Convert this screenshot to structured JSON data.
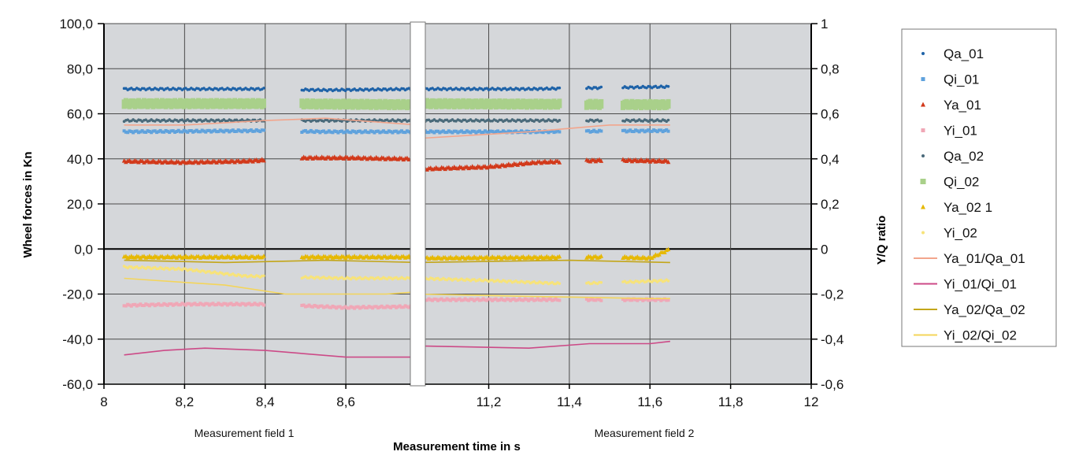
{
  "chart_data": {
    "type": "scatter",
    "xlabel": "Measurement time in s",
    "ylabel": "Wheel forces in Kn",
    "y2label": "Y/Q ratio",
    "ylim": [
      -60,
      100
    ],
    "y2lim": [
      -0.6,
      1
    ],
    "left_ticks": [
      "-60,0",
      "-40,0",
      "-20,0",
      "0,0",
      "20,0",
      "40,0",
      "60,0",
      "80,0",
      "100,0"
    ],
    "right_ticks": [
      "-0,6",
      "-0,4",
      "-0,2",
      "0",
      "0,2",
      "0,4",
      "0,6",
      "0,8",
      "1"
    ],
    "x_ticks": [
      "8",
      "8,2",
      "8,4",
      "8,6",
      "11,2",
      "11,4",
      "11,6",
      "11,8",
      "12"
    ],
    "x_tick_values": [
      8,
      8.2,
      8.4,
      8.6,
      11.2,
      11.4,
      11.6,
      11.8,
      12
    ],
    "axis_break": [
      8.8,
      11.0
    ],
    "field_labels": [
      "Measurement field 1",
      "Measurement field 2"
    ],
    "grid": true,
    "legend_position": "right",
    "gap_segments": [
      [
        8.4,
        8.49
      ],
      [
        11.38,
        11.44
      ],
      [
        11.48,
        11.53
      ]
    ],
    "series": [
      {
        "name": "Qa_01",
        "color": "#1f63a8",
        "marker": "dot",
        "axis": "left",
        "range1": [
          8.05,
          8.78
        ],
        "range2": [
          11.02,
          11.65
        ],
        "points": [
          [
            8.05,
            71
          ],
          [
            8.4,
            71
          ],
          [
            8.55,
            70.5
          ],
          [
            8.78,
            71
          ],
          [
            11.02,
            71
          ],
          [
            11.3,
            71
          ],
          [
            11.65,
            72
          ]
        ]
      },
      {
        "name": "Qi_01",
        "color": "#5fa2dd",
        "marker": "square",
        "axis": "left",
        "range1": [
          8.05,
          8.78
        ],
        "range2": [
          11.02,
          11.65
        ],
        "points": [
          [
            8.05,
            52
          ],
          [
            8.4,
            52.5
          ],
          [
            8.55,
            52
          ],
          [
            8.78,
            52
          ],
          [
            11.02,
            52
          ],
          [
            11.3,
            52
          ],
          [
            11.65,
            52.5
          ]
        ]
      },
      {
        "name": "Ya_01",
        "color": "#d2391a",
        "marker": "triangle",
        "axis": "left",
        "range1": [
          8.05,
          8.78
        ],
        "range2": [
          11.02,
          11.65
        ],
        "points": [
          [
            8.05,
            39
          ],
          [
            8.2,
            38.5
          ],
          [
            8.35,
            39
          ],
          [
            8.5,
            40.5
          ],
          [
            8.6,
            40.5
          ],
          [
            8.78,
            40
          ],
          [
            11.02,
            35.5
          ],
          [
            11.2,
            36.5
          ],
          [
            11.32,
            38.5
          ],
          [
            11.5,
            39.5
          ],
          [
            11.65,
            39
          ]
        ]
      },
      {
        "name": "Yi_01",
        "color": "#f0a7b6",
        "marker": "square",
        "axis": "left",
        "range1": [
          8.05,
          8.78
        ],
        "range2": [
          11.02,
          11.65
        ],
        "points": [
          [
            8.05,
            -25
          ],
          [
            8.2,
            -24.5
          ],
          [
            8.4,
            -24.5
          ],
          [
            8.6,
            -26
          ],
          [
            8.78,
            -25.5
          ],
          [
            11.02,
            -22.5
          ],
          [
            11.3,
            -22.5
          ],
          [
            11.65,
            -22.5
          ]
        ]
      },
      {
        "name": "Qa_02",
        "color": "#4a6a7a",
        "marker": "dot",
        "axis": "left",
        "range1": [
          8.05,
          8.78
        ],
        "range2": [
          11.02,
          11.65
        ],
        "points": [
          [
            8.05,
            57
          ],
          [
            8.4,
            57
          ],
          [
            8.78,
            57
          ],
          [
            11.02,
            57
          ],
          [
            11.65,
            57
          ]
        ]
      },
      {
        "name": "Qi_02",
        "color": "#a9d08a",
        "marker": "square-big",
        "axis": "left",
        "range1": [
          8.05,
          8.78
        ],
        "range2": [
          11.02,
          11.65
        ],
        "points": [
          [
            8.05,
            64.5
          ],
          [
            8.4,
            64.5
          ],
          [
            8.78,
            64
          ],
          [
            11.02,
            64.5
          ],
          [
            11.65,
            64
          ]
        ]
      },
      {
        "name": "Ya_02 1",
        "color": "#e6b800",
        "marker": "triangle",
        "axis": "left",
        "range1": [
          8.05,
          8.78
        ],
        "range2": [
          11.02,
          11.65
        ],
        "points": [
          [
            8.05,
            -3.5
          ],
          [
            8.4,
            -3.5
          ],
          [
            8.78,
            -3.5
          ],
          [
            11.02,
            -4
          ],
          [
            11.5,
            -3.5
          ],
          [
            11.6,
            -4
          ],
          [
            11.65,
            0
          ]
        ]
      },
      {
        "name": "Yi_02",
        "color": "#f7e37a",
        "marker": "dot",
        "axis": "left",
        "range1": [
          8.05,
          8.78
        ],
        "range2": [
          11.02,
          11.65
        ],
        "points": [
          [
            8.05,
            -8
          ],
          [
            8.2,
            -9
          ],
          [
            8.35,
            -12
          ],
          [
            8.6,
            -13
          ],
          [
            8.78,
            -13
          ],
          [
            11.02,
            -13
          ],
          [
            11.2,
            -14
          ],
          [
            11.4,
            -15.5
          ],
          [
            11.65,
            -14
          ]
        ]
      },
      {
        "name": "Ya_01/Qa_01",
        "color": "#f2a58c",
        "marker": "line",
        "axis": "right",
        "range1": [
          8.05,
          8.78
        ],
        "range2": [
          11.02,
          11.65
        ],
        "points": [
          [
            8.05,
            0.55
          ],
          [
            8.2,
            0.55
          ],
          [
            8.4,
            0.57
          ],
          [
            8.55,
            0.58
          ],
          [
            8.78,
            0.55
          ],
          [
            11.02,
            0.49
          ],
          [
            11.3,
            0.52
          ],
          [
            11.5,
            0.55
          ],
          [
            11.65,
            0.55
          ]
        ]
      },
      {
        "name": "Yi_01/Qi_01",
        "color": "#cc4a87",
        "marker": "line",
        "axis": "right",
        "range1": [
          8.05,
          8.78
        ],
        "range2": [
          11.02,
          11.65
        ],
        "points": [
          [
            8.05,
            -0.47
          ],
          [
            8.15,
            -0.45
          ],
          [
            8.25,
            -0.44
          ],
          [
            8.4,
            -0.45
          ],
          [
            8.6,
            -0.48
          ],
          [
            8.78,
            -0.48
          ],
          [
            11.02,
            -0.43
          ],
          [
            11.3,
            -0.44
          ],
          [
            11.45,
            -0.42
          ],
          [
            11.6,
            -0.42
          ],
          [
            11.65,
            -0.41
          ]
        ]
      },
      {
        "name": "Ya_02/Qa_02",
        "color": "#c3a61a",
        "marker": "line",
        "axis": "right",
        "range1": [
          8.05,
          8.78
        ],
        "range2": [
          11.02,
          11.65
        ],
        "points": [
          [
            8.05,
            -0.05
          ],
          [
            8.3,
            -0.06
          ],
          [
            8.55,
            -0.05
          ],
          [
            8.78,
            -0.06
          ],
          [
            11.02,
            -0.06
          ],
          [
            11.4,
            -0.05
          ],
          [
            11.65,
            -0.06
          ]
        ]
      },
      {
        "name": "Yi_02/Qi_02",
        "color": "#f4d55a",
        "marker": "line",
        "axis": "right",
        "range1": [
          8.05,
          8.78
        ],
        "range2": [
          11.02,
          11.65
        ],
        "points": [
          [
            8.05,
            -0.13
          ],
          [
            8.3,
            -0.16
          ],
          [
            8.45,
            -0.2
          ],
          [
            8.7,
            -0.2
          ],
          [
            8.78,
            -0.19
          ],
          [
            11.02,
            -0.2
          ],
          [
            11.3,
            -0.21
          ],
          [
            11.6,
            -0.22
          ],
          [
            11.65,
            -0.22
          ]
        ]
      }
    ]
  }
}
